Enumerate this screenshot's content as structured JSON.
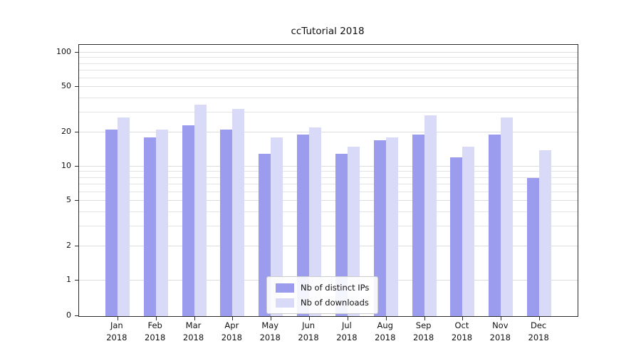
{
  "chart_data": {
    "type": "bar",
    "title": "ccTutorial 2018",
    "categories": [
      "Jan",
      "Feb",
      "Mar",
      "Apr",
      "May",
      "Jun",
      "Jul",
      "Aug",
      "Sep",
      "Oct",
      "Nov",
      "Dec"
    ],
    "year_label": "2018",
    "series": [
      {
        "name": "Nb of distinct IPs",
        "color": "#9c9cee",
        "values": [
          21,
          18,
          23,
          21,
          13,
          19,
          13,
          17,
          19,
          12,
          19,
          8
        ]
      },
      {
        "name": "Nb of downloads",
        "color": "#d9d9f8",
        "values": [
          27,
          21,
          35,
          32,
          18,
          22,
          15,
          18,
          28,
          15,
          27,
          14
        ]
      }
    ],
    "yticks": [
      0,
      1,
      2,
      5,
      10,
      20,
      50,
      100
    ],
    "minor_gridlines": [
      3,
      4,
      6,
      7,
      8,
      9,
      30,
      40,
      60,
      70,
      80,
      90
    ],
    "scale": "symlog",
    "ylim": [
      0,
      117
    ],
    "grid": true,
    "legend_position": "lower center"
  }
}
